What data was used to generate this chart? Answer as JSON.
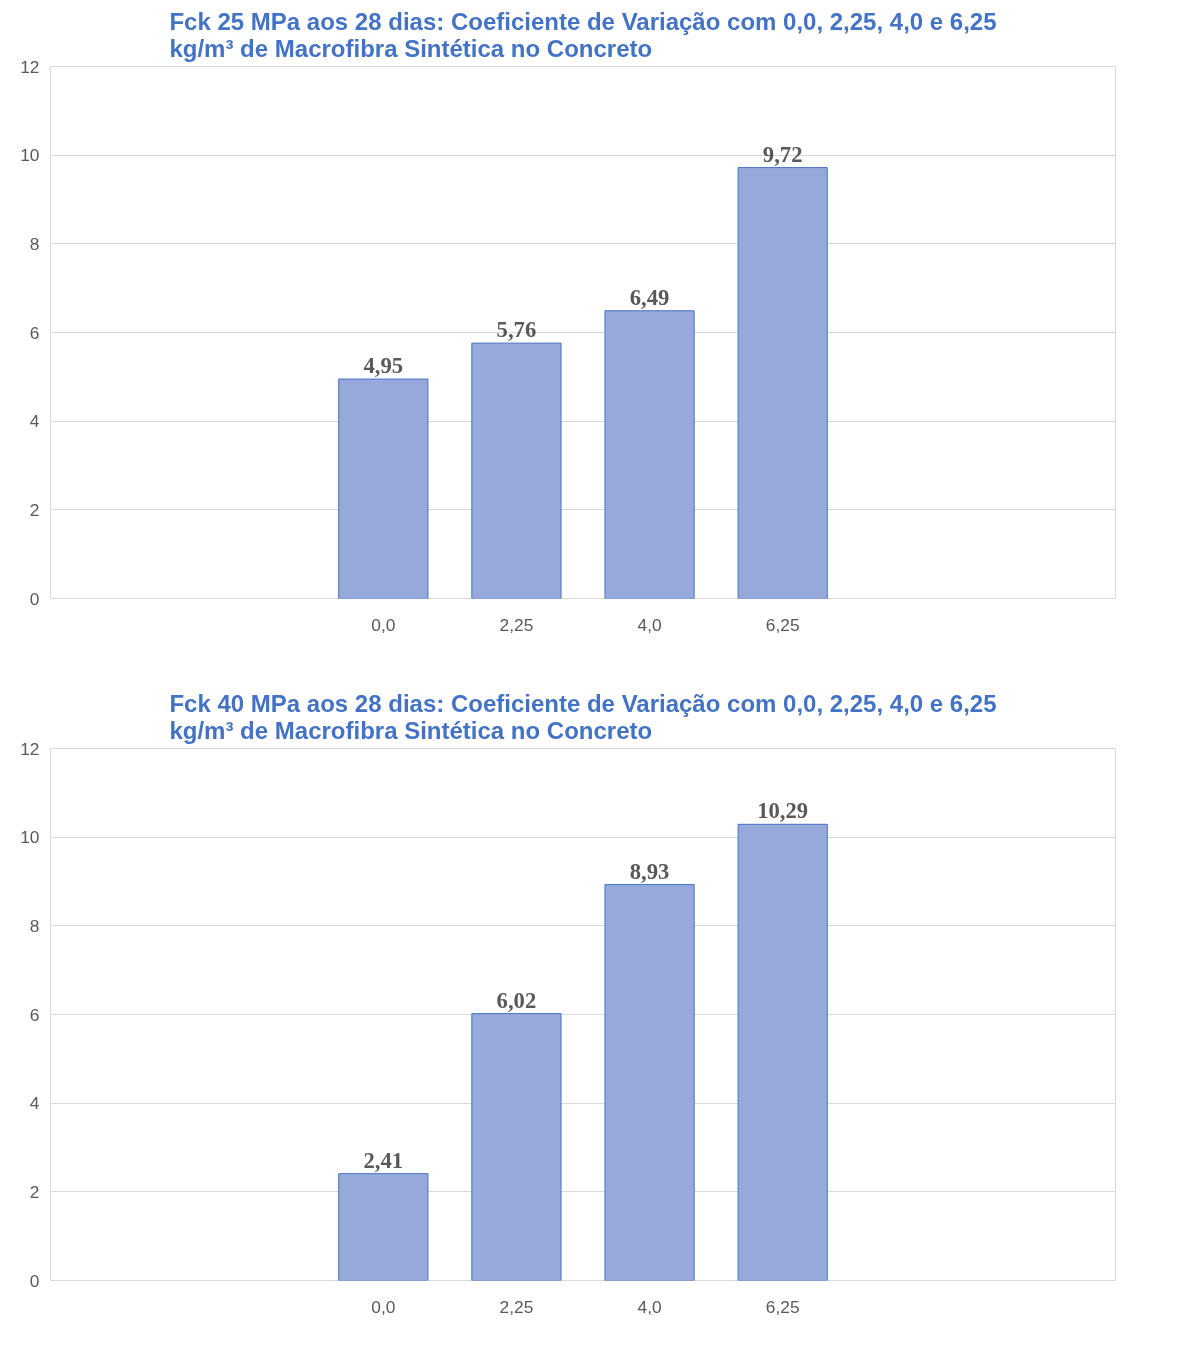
{
  "chart_data": [
    {
      "type": "bar",
      "title": "Fck 25 MPa aos 28 dias: Coeficiente de Variação com 0,0, 2,25, 4,0 e 6,25 kg/m³ de Macrofibra Sintética no Concreto",
      "categories": [
        null,
        null,
        "0,0",
        "2,25",
        "4,0",
        "6,25",
        null,
        null
      ],
      "values": [
        null,
        null,
        4.95,
        5.76,
        6.49,
        9.72,
        null,
        null
      ],
      "value_labels": [
        null,
        null,
        "4,95",
        "5,76",
        "6,49",
        "9,72",
        null,
        null
      ],
      "color": "#97a9db",
      "ylim": [
        0,
        12
      ],
      "yticks": [
        0,
        2,
        4,
        6,
        8,
        10,
        12
      ],
      "grid": "y"
    },
    {
      "type": "bar",
      "title": "Fck 40 MPa aos 28 dias: Coeficiente de Variação com 0,0, 2,25, 4,0 e 6,25 kg/m³ de Macrofibra Sintética no Concreto",
      "categories": [
        null,
        null,
        "0,0",
        "2,25",
        "4,0",
        "6,25",
        null,
        null
      ],
      "values": [
        null,
        null,
        2.41,
        6.02,
        8.93,
        10.29,
        null,
        null
      ],
      "value_labels": [
        null,
        null,
        "2,41",
        "6,02",
        "8,93",
        "10,29",
        null,
        null
      ],
      "color": "#97a9db",
      "ylim": [
        0,
        12
      ],
      "yticks": [
        0,
        2,
        4,
        6,
        8,
        10,
        12
      ],
      "grid": "y"
    }
  ]
}
